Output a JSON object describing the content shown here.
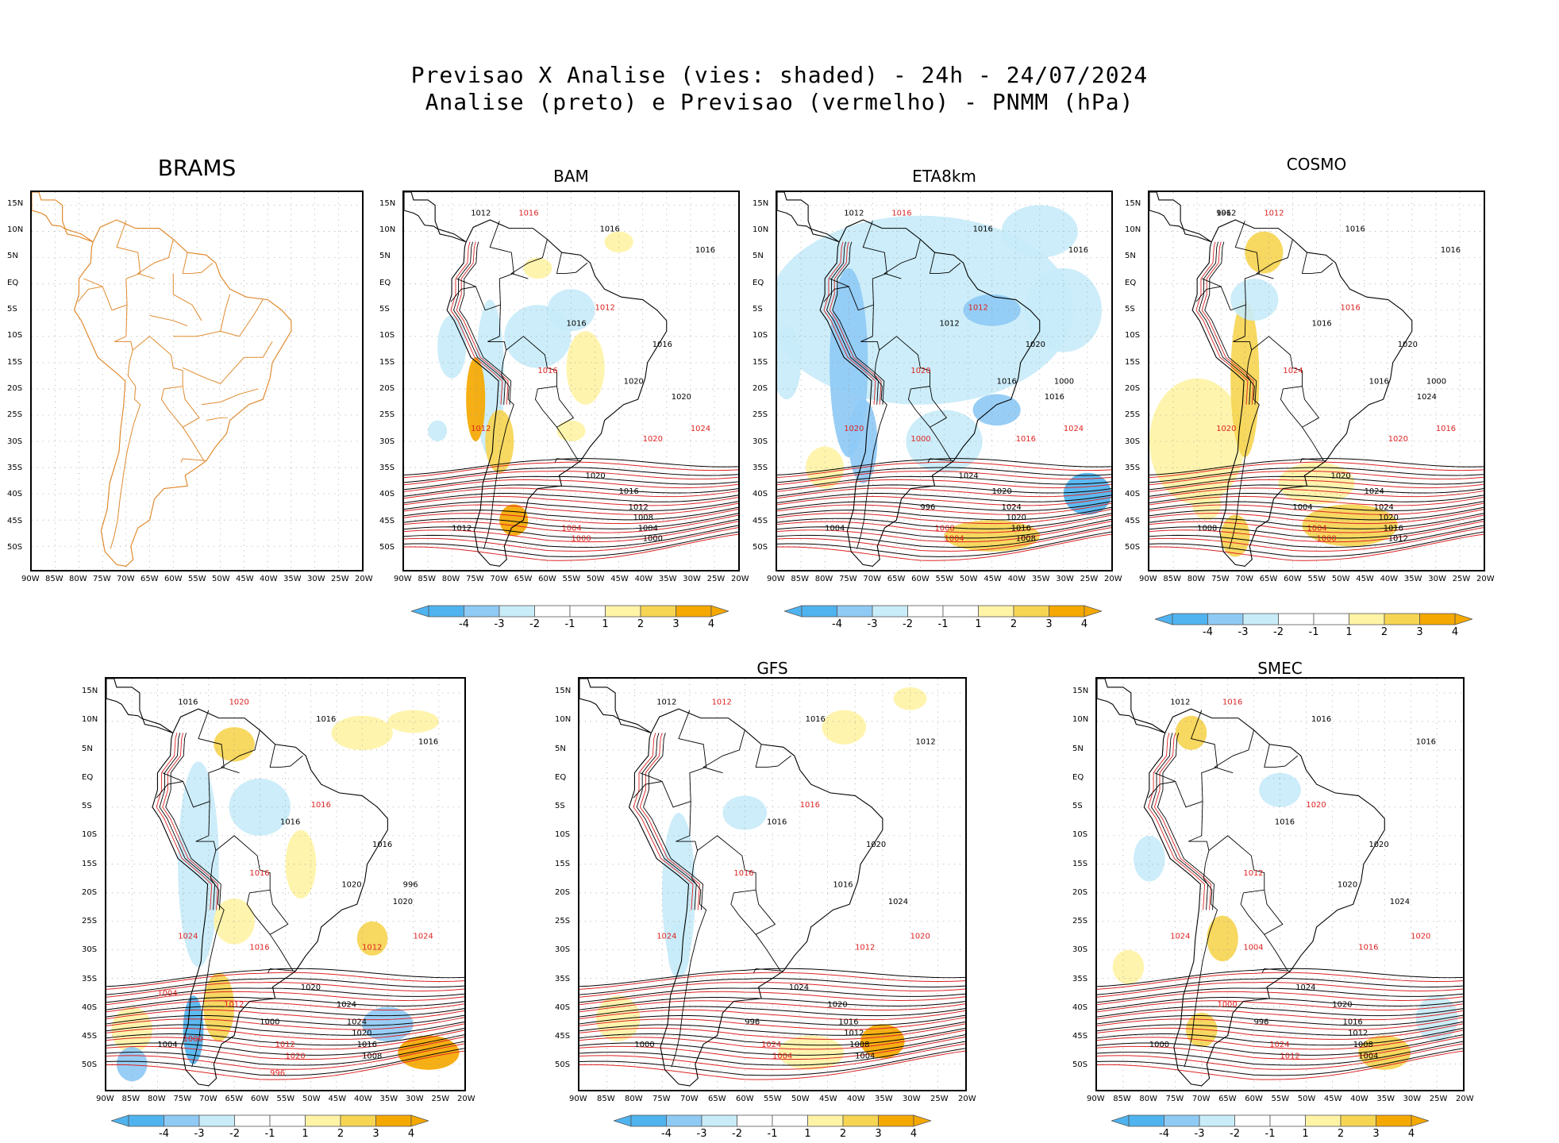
{
  "header": {
    "line1": "Previsao X Analise (vies: shaded) - 24h - 24/07/2024",
    "line2": "Analise (preto) e Previsao (vermelho) - PNMM (hPa)"
  },
  "colors": {
    "analysis": "#000000",
    "forecast": "#dd2222",
    "land_outline": "#e08a2e",
    "neg4": "#4fb3f0",
    "neg3": "#8fcaf5",
    "neg2": "#c8ecf8",
    "neutral": "#ffffff",
    "pos2": "#fff3a6",
    "pos3": "#f6d553",
    "pos4": "#f5a800"
  },
  "colorbar": {
    "labels": [
      "-4",
      "-3",
      "-2",
      "-1",
      "1",
      "2",
      "3",
      "4"
    ]
  },
  "axes": {
    "lat_labels": [
      "15N",
      "10N",
      "5N",
      "EQ",
      "5S",
      "10S",
      "15S",
      "20S",
      "25S",
      "30S",
      "35S",
      "40S",
      "45S",
      "50S"
    ],
    "lon_labels": [
      "90W",
      "85W",
      "80W",
      "75W",
      "70W",
      "65W",
      "60W",
      "55W",
      "50W",
      "45W",
      "40W",
      "35W",
      "30W",
      "25W",
      "20W"
    ]
  },
  "panels": [
    {
      "name": "BRAMS",
      "title": "BRAMS",
      "has_colorbar": false,
      "empty": true,
      "labels_black": [],
      "labels_red": []
    },
    {
      "name": "BAM",
      "title": "BAM",
      "has_colorbar": true,
      "empty": false,
      "labels_black": [
        "1012",
        "1016",
        "1016",
        "1016",
        "1020",
        "1016",
        "1020",
        "1020",
        "1016",
        "1012",
        "1008",
        "1004",
        "1000",
        "1012"
      ],
      "labels_red": [
        "1016",
        "1012",
        "1020",
        "1016",
        "1024",
        "1012",
        "1004",
        "1000"
      ]
    },
    {
      "name": "ETA8km",
      "title": "ETA8km",
      "has_colorbar": true,
      "empty": false,
      "labels_black": [
        "1012",
        "1016",
        "1016",
        "1012",
        "1016",
        "1020",
        "1016",
        "1024",
        "1020",
        "1024",
        "1020",
        "1016",
        "1008",
        "1004",
        "996",
        "1000"
      ],
      "labels_red": [
        "1016",
        "1012",
        "1016",
        "1020",
        "1024",
        "1020",
        "1008",
        "1004",
        "1000"
      ]
    },
    {
      "name": "COSMO",
      "title": "COSMO",
      "has_colorbar": true,
      "empty": false,
      "labels_black": [
        "1012",
        "1016",
        "1016",
        "1016",
        "1016",
        "1020",
        "1024",
        "1020",
        "1024",
        "1024",
        "1020",
        "1016",
        "1012",
        "1008",
        "1004",
        "1000",
        "996"
      ],
      "labels_red": [
        "1012",
        "1016",
        "1020",
        "1024",
        "1016",
        "1020",
        "1004",
        "1000"
      ]
    },
    {
      "name": "panel5",
      "title": "",
      "has_colorbar": true,
      "empty": false,
      "labels_black": [
        "1016",
        "1016",
        "1016",
        "1016",
        "1020",
        "1016",
        "1020",
        "1020",
        "1024",
        "1024",
        "1020",
        "1016",
        "1008",
        "1004",
        "1000",
        "996"
      ],
      "labels_red": [
        "1020",
        "1016",
        "1012",
        "1016",
        "1024",
        "1024",
        "1012",
        "1020",
        "1016",
        "1012",
        "1004",
        "1000",
        "996"
      ]
    },
    {
      "name": "GFS",
      "title": "GFS",
      "has_colorbar": true,
      "empty": false,
      "labels_black": [
        "1012",
        "1016",
        "1012",
        "1016",
        "1016",
        "1020",
        "1024",
        "1024",
        "1020",
        "1016",
        "1012",
        "1008",
        "1004",
        "1000",
        "996"
      ],
      "labels_red": [
        "1012",
        "1016",
        "1012",
        "1016",
        "1020",
        "1024",
        "1024",
        "1004"
      ]
    },
    {
      "name": "SMEC",
      "title": "SMEC",
      "has_colorbar": true,
      "empty": false,
      "labels_black": [
        "1012",
        "1016",
        "1016",
        "1016",
        "1020",
        "1020",
        "1024",
        "1024",
        "1020",
        "1016",
        "1012",
        "1008",
        "1004",
        "1000",
        "996"
      ],
      "labels_red": [
        "1016",
        "1020",
        "1016",
        "1012",
        "1020",
        "1024",
        "1024",
        "1012",
        "1004",
        "1000"
      ]
    }
  ]
}
